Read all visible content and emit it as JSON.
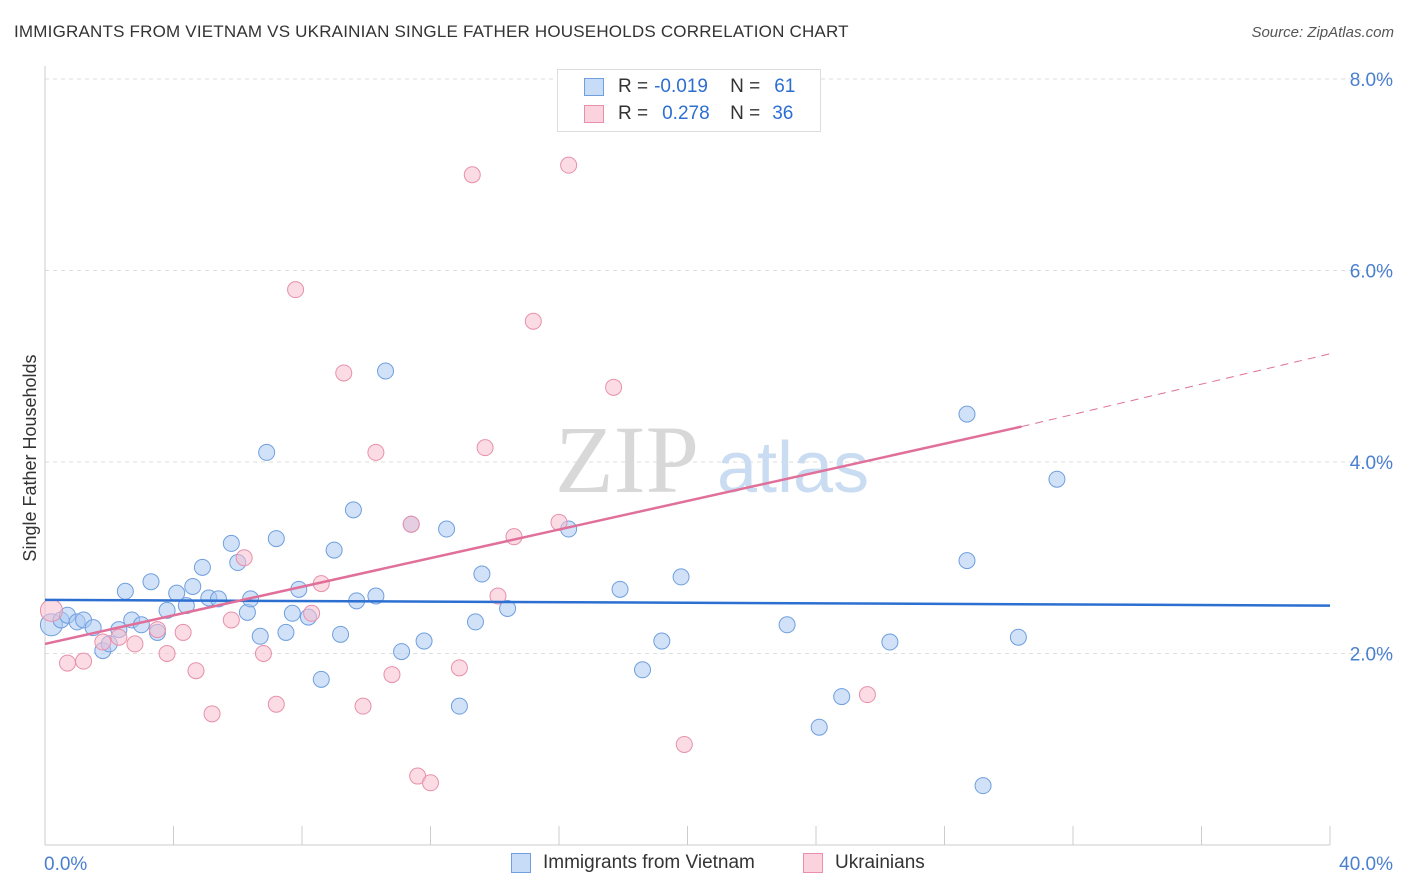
{
  "title": "IMMIGRANTS FROM VIETNAM VS UKRAINIAN SINGLE FATHER HOUSEHOLDS CORRELATION CHART",
  "source": "Source: ZipAtlas.com",
  "legend": {
    "rows": [
      {
        "r_label": "R =",
        "r_value": "-0.019",
        "n_label": "N =",
        "n_value": "61",
        "color": "#a9c9f2",
        "border": "#6f9fde"
      },
      {
        "r_label": "R =",
        "r_value": "0.278",
        "n_label": "N =",
        "n_value": "36",
        "color": "#f8c0d0",
        "border": "#e890ab"
      }
    ]
  },
  "bottom_legend": [
    "Immigrants from Vietnam",
    "Ukrainians"
  ],
  "watermark": {
    "zip": "ZIP",
    "atlas": "atlas"
  },
  "chart_data": {
    "type": "scatter",
    "title": "IMMIGRANTS FROM VIETNAM VS UKRAINIAN SINGLE FATHER HOUSEHOLDS CORRELATION CHART",
    "xlabel": "",
    "ylabel": "Single Father Households",
    "xlim": [
      0,
      40
    ],
    "ylim": [
      0,
      8
    ],
    "x_tick_labels": [
      "0.0%",
      "40.0%"
    ],
    "y_tick_labels": [
      "2.0%",
      "4.0%",
      "6.0%",
      "8.0%"
    ],
    "y_tick_values": [
      2,
      4,
      6,
      8
    ],
    "grid": true,
    "series": [
      {
        "name": "Immigrants from Vietnam",
        "color": "#a9c9f2",
        "stroke": "#6f9fde",
        "trend": {
          "x": [
            0,
            40
          ],
          "y": [
            2.56,
            2.5
          ],
          "color": "#2c6fd1"
        },
        "points": [
          {
            "x": 0.2,
            "y": 2.3
          },
          {
            "x": 0.5,
            "y": 2.35
          },
          {
            "x": 0.7,
            "y": 2.4
          },
          {
            "x": 1.0,
            "y": 2.33
          },
          {
            "x": 1.2,
            "y": 2.35
          },
          {
            "x": 1.5,
            "y": 2.27
          },
          {
            "x": 1.8,
            "y": 2.03
          },
          {
            "x": 2.0,
            "y": 2.1
          },
          {
            "x": 2.3,
            "y": 2.25
          },
          {
            "x": 2.5,
            "y": 2.65
          },
          {
            "x": 2.7,
            "y": 2.35
          },
          {
            "x": 3.0,
            "y": 2.3
          },
          {
            "x": 3.3,
            "y": 2.75
          },
          {
            "x": 3.5,
            "y": 2.22
          },
          {
            "x": 3.8,
            "y": 2.45
          },
          {
            "x": 4.1,
            "y": 2.63
          },
          {
            "x": 4.4,
            "y": 2.5
          },
          {
            "x": 4.6,
            "y": 2.7
          },
          {
            "x": 4.9,
            "y": 2.9
          },
          {
            "x": 5.1,
            "y": 2.58
          },
          {
            "x": 5.4,
            "y": 2.57
          },
          {
            "x": 5.8,
            "y": 3.15
          },
          {
            "x": 6.0,
            "y": 2.95
          },
          {
            "x": 6.3,
            "y": 2.43
          },
          {
            "x": 6.4,
            "y": 2.57
          },
          {
            "x": 6.7,
            "y": 2.18
          },
          {
            "x": 6.9,
            "y": 4.1
          },
          {
            "x": 7.2,
            "y": 3.2
          },
          {
            "x": 7.5,
            "y": 2.22
          },
          {
            "x": 7.7,
            "y": 2.42
          },
          {
            "x": 7.9,
            "y": 2.67
          },
          {
            "x": 8.2,
            "y": 2.38
          },
          {
            "x": 8.6,
            "y": 1.73
          },
          {
            "x": 9.0,
            "y": 3.08
          },
          {
            "x": 9.2,
            "y": 2.2
          },
          {
            "x": 9.6,
            "y": 3.5
          },
          {
            "x": 9.7,
            "y": 2.55
          },
          {
            "x": 10.3,
            "y": 2.6
          },
          {
            "x": 10.6,
            "y": 4.95
          },
          {
            "x": 11.1,
            "y": 2.02
          },
          {
            "x": 11.4,
            "y": 3.35
          },
          {
            "x": 11.8,
            "y": 2.13
          },
          {
            "x": 12.5,
            "y": 3.3
          },
          {
            "x": 12.9,
            "y": 1.45
          },
          {
            "x": 13.4,
            "y": 2.33
          },
          {
            "x": 13.6,
            "y": 2.83
          },
          {
            "x": 14.4,
            "y": 2.47
          },
          {
            "x": 16.3,
            "y": 3.3
          },
          {
            "x": 17.9,
            "y": 2.67
          },
          {
            "x": 18.6,
            "y": 1.83
          },
          {
            "x": 19.2,
            "y": 2.13
          },
          {
            "x": 19.8,
            "y": 2.8
          },
          {
            "x": 23.1,
            "y": 2.3
          },
          {
            "x": 24.1,
            "y": 1.23
          },
          {
            "x": 24.8,
            "y": 1.55
          },
          {
            "x": 26.3,
            "y": 2.12
          },
          {
            "x": 28.7,
            "y": 4.5
          },
          {
            "x": 28.7,
            "y": 2.97
          },
          {
            "x": 29.2,
            "y": 0.62
          },
          {
            "x": 30.3,
            "y": 2.17
          },
          {
            "x": 31.5,
            "y": 3.82
          }
        ]
      },
      {
        "name": "Ukrainians",
        "color": "#f8c0d0",
        "stroke": "#e890ab",
        "trend": {
          "x": [
            0,
            30.4
          ],
          "y": [
            2.1,
            4.37
          ],
          "dashed_x": [
            30.4,
            40
          ],
          "dashed_y": [
            4.37,
            5.13
          ],
          "color": "#e07099"
        },
        "points": [
          {
            "x": 0.2,
            "y": 2.45
          },
          {
            "x": 0.7,
            "y": 1.9
          },
          {
            "x": 1.2,
            "y": 1.92
          },
          {
            "x": 1.8,
            "y": 2.12
          },
          {
            "x": 2.3,
            "y": 2.17
          },
          {
            "x": 2.8,
            "y": 2.1
          },
          {
            "x": 3.5,
            "y": 2.25
          },
          {
            "x": 3.8,
            "y": 2.0
          },
          {
            "x": 4.3,
            "y": 2.22
          },
          {
            "x": 4.7,
            "y": 1.82
          },
          {
            "x": 5.2,
            "y": 1.37
          },
          {
            "x": 5.8,
            "y": 2.35
          },
          {
            "x": 6.2,
            "y": 3.0
          },
          {
            "x": 6.8,
            "y": 2.0
          },
          {
            "x": 7.2,
            "y": 1.47
          },
          {
            "x": 7.8,
            "y": 5.8
          },
          {
            "x": 8.3,
            "y": 2.42
          },
          {
            "x": 8.6,
            "y": 2.73
          },
          {
            "x": 9.3,
            "y": 4.93
          },
          {
            "x": 9.9,
            "y": 1.45
          },
          {
            "x": 10.3,
            "y": 4.1
          },
          {
            "x": 10.8,
            "y": 1.78
          },
          {
            "x": 11.4,
            "y": 3.35
          },
          {
            "x": 11.6,
            "y": 0.72
          },
          {
            "x": 12.0,
            "y": 0.65
          },
          {
            "x": 12.9,
            "y": 1.85
          },
          {
            "x": 13.3,
            "y": 7.0
          },
          {
            "x": 13.7,
            "y": 4.15
          },
          {
            "x": 14.1,
            "y": 2.6
          },
          {
            "x": 14.6,
            "y": 3.22
          },
          {
            "x": 15.2,
            "y": 5.47
          },
          {
            "x": 16.0,
            "y": 3.37
          },
          {
            "x": 16.3,
            "y": 7.1
          },
          {
            "x": 17.7,
            "y": 4.78
          },
          {
            "x": 19.9,
            "y": 1.05
          },
          {
            "x": 25.6,
            "y": 1.57
          }
        ]
      }
    ]
  }
}
